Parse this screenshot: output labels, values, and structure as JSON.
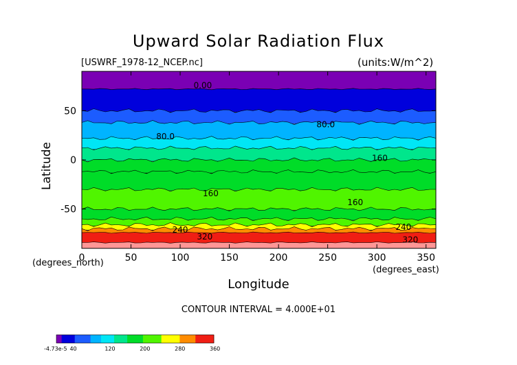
{
  "title": "Upward Solar Radiation Flux",
  "source_label": "[USWRF_1978-12_NCEP.nc]",
  "units_label": "(units:W/m^2)",
  "footer": "CONTOUR INTERVAL = 4.000E+01",
  "colors": {
    "purple": "#7a00b4",
    "blue_dark": "#0000dc",
    "blue": "#1c5cff",
    "sky": "#00b4ff",
    "cyan": "#00e6f5",
    "green_light": "#00e68c",
    "green": "#00dc28",
    "lime": "#50f500",
    "yellow": "#ffff00",
    "orange": "#ff8c00",
    "red": "#f01e14",
    "pink": "#ff9696"
  },
  "chart_data": {
    "type": "heatmap",
    "title": "Upward Solar Radiation Flux",
    "source": "[USWRF_1978-12_NCEP.nc]",
    "units": "(units:W/m^2)",
    "xlabel": "Longitude",
    "x_unit_label": "(degrees_east)",
    "ylabel": "Latitude",
    "y_unit_label": "(degrees_north)",
    "xlim": [
      0,
      360
    ],
    "ylim": [
      -90,
      90
    ],
    "xticks": [
      0,
      50,
      100,
      150,
      200,
      250,
      300,
      350
    ],
    "yticks": [
      -50,
      0,
      50
    ],
    "contour_interval": 40,
    "contour_labels": [
      {
        "text": "0.00",
        "lon": 123,
        "lat": 73
      },
      {
        "text": "80.0",
        "lon": 85,
        "lat": 21
      },
      {
        "text": "80.0",
        "lon": 248,
        "lat": 33
      },
      {
        "text": "160",
        "lon": 303,
        "lat": -1
      },
      {
        "text": "160",
        "lon": 131,
        "lat": -37
      },
      {
        "text": "160",
        "lon": 278,
        "lat": -46
      },
      {
        "text": "240",
        "lon": 100,
        "lat": -74
      },
      {
        "text": "240",
        "lon": 327,
        "lat": -71
      },
      {
        "text": "320",
        "lon": 125,
        "lat": -81
      },
      {
        "text": "320",
        "lon": 334,
        "lat": -84
      }
    ],
    "zonal_bands": [
      {
        "lat_min": 72,
        "lat_max": 90,
        "value": 0
      },
      {
        "lat_min": 50,
        "lat_max": 72,
        "value": 30
      },
      {
        "lat_min": 38,
        "lat_max": 50,
        "value": 70
      },
      {
        "lat_min": 22,
        "lat_max": 38,
        "value": 90
      },
      {
        "lat_min": 12,
        "lat_max": 22,
        "value": 115
      },
      {
        "lat_min": 0,
        "lat_max": 12,
        "value": 150
      },
      {
        "lat_min": -12,
        "lat_max": 0,
        "value": 175
      },
      {
        "lat_min": -30,
        "lat_max": -12,
        "value": 185
      },
      {
        "lat_min": -50,
        "lat_max": -30,
        "value": 200
      },
      {
        "lat_min": -60,
        "lat_max": -50,
        "value": 190
      },
      {
        "lat_min": -66,
        "lat_max": -60,
        "value": 220
      },
      {
        "lat_min": -70,
        "lat_max": -66,
        "value": 260
      },
      {
        "lat_min": -74,
        "lat_max": -70,
        "value": 290
      },
      {
        "lat_min": -84,
        "lat_max": -74,
        "value": 330
      },
      {
        "lat_min": -90,
        "lat_max": -84,
        "value": 375
      }
    ],
    "colorbar": {
      "min": -4.73e-05,
      "max": 360,
      "tick_labels": [
        "-4.73e-5",
        "40",
        "120",
        "200",
        "280",
        "360"
      ]
    }
  }
}
